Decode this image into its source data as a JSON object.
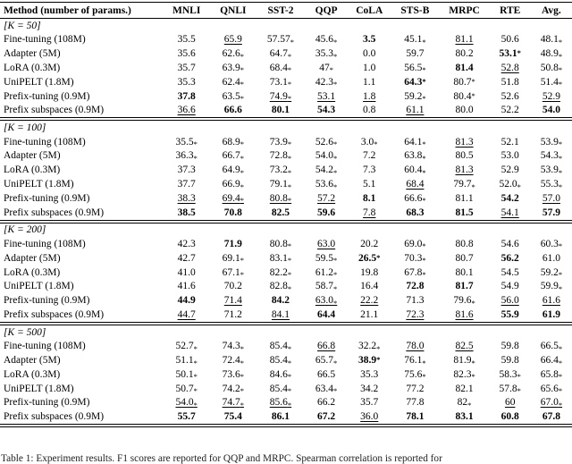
{
  "table": {
    "columns": [
      "Method (number of params.)",
      "MNLI",
      "QNLI",
      "SST-2",
      "QQP",
      "CoLA",
      "STS-B",
      "MRPC",
      "RTE",
      "Avg."
    ],
    "flag_codes": {
      "b": "bold",
      "u": "underline",
      "s": "subscript-star",
      "S": "superscript-star"
    },
    "sections": [
      {
        "label": "[K = 50]",
        "rows": [
          {
            "method": "Fine-tuning (108M)",
            "cells": [
              "35.5",
              "65.9|u",
              "57.57|s",
              "45.6|s",
              "3.5|b",
              "45.1|s",
              "81.1|u",
              "50.6",
              "48.1|s"
            ]
          },
          {
            "method": "Adapter (5M)",
            "cells": [
              "35.6",
              "62.6|s",
              "64.7|s",
              "35.3|s",
              "0.0",
              "59.7",
              "80.2",
              "53.1|bS",
              "48.9|s"
            ]
          },
          {
            "method": "LoRA (0.3M)",
            "cells": [
              "35.7",
              "63.9|s",
              "68.4|s",
              "47|s",
              "1.0",
              "56.5|s",
              "81.4|b",
              "52.8|u",
              "50.8|s"
            ]
          },
          {
            "method": "UniPELT (1.8M)",
            "cells": [
              "35.3",
              "62.4|s",
              "73.1|s",
              "42.3|s",
              "1.1",
              "64.3|bS",
              "80.7|S",
              "51.8",
              "51.4|s"
            ]
          },
          {
            "method": "Prefix-tuning (0.9M)",
            "cells": [
              "37.8|b",
              "63.5|s",
              "74.9|us",
              "53.1|u",
              "1.8|u",
              "59.2|s",
              "80.4|S",
              "52.6",
              "52.9|u"
            ]
          },
          {
            "method": "Prefix subspaces (0.9M)",
            "cells": [
              "36.6|u",
              "66.6|b",
              "80.1|b",
              "54.3|b",
              "0.8",
              "61.1|u",
              "80.0",
              "52.2",
              "54.0|b"
            ]
          }
        ]
      },
      {
        "label": "[K = 100]",
        "rows": [
          {
            "method": "Fine-tuning (108M)",
            "cells": [
              "35.5|s",
              "68.9|s",
              "73.9|s",
              "52.6|s",
              "3.0|s",
              "64.1|s",
              "81.3|u",
              "52.1",
              "53.9|s"
            ]
          },
          {
            "method": "Adapter (5M)",
            "cells": [
              "36.3|s",
              "66.7|s",
              "72.8|s",
              "54.0|s",
              "7.2",
              "63.8|s",
              "80.5",
              "53.0",
              "54.3|s"
            ]
          },
          {
            "method": "LoRA (0.3M)",
            "cells": [
              "37.3",
              "64.9|s",
              "73.2|s",
              "54.2|s",
              "7.3",
              "60.4|s",
              "81.3|u",
              "52.9",
              "53.9|s"
            ]
          },
          {
            "method": "UniPELT (1.8M)",
            "cells": [
              "37.7",
              "66.9|s",
              "79.1|s",
              "53.6|s",
              "5.1",
              "68.4|u",
              "79.7|s",
              "52.0|s",
              "55.3|s"
            ]
          },
          {
            "method": "Prefix-tuning (0.9M)",
            "cells": [
              "38.3|u",
              "69.4|us",
              "80.8|us",
              "57.2|u",
              "8.1|b",
              "66.6|s",
              "81.1",
              "54.2|b",
              "57.0|u"
            ]
          },
          {
            "method": "Prefix subspaces (0.9M)",
            "cells": [
              "38.5|b",
              "70.8|b",
              "82.5|b",
              "59.6|b",
              "7.8|u",
              "68.3|b",
              "81.5|b",
              "54.1|u",
              "57.9|b"
            ]
          }
        ]
      },
      {
        "label": "[K = 200]",
        "rows": [
          {
            "method": "Fine-tuning (108M)",
            "cells": [
              "42.3",
              "71.9|b",
              "80.8|s",
              "63.0|u",
              "20.2",
              "69.0|s",
              "80.8",
              "54.6",
              "60.3|s"
            ]
          },
          {
            "method": "Adapter (5M)",
            "cells": [
              "42.7",
              "69.1|s",
              "83.1|s",
              "59.5|s",
              "26.5|bS",
              "70.3|s",
              "80.7",
              "56.2|b",
              "61.0"
            ]
          },
          {
            "method": "LoRA (0.3M)",
            "cells": [
              "41.0",
              "67.1|s",
              "82.2|s",
              "61.2|s",
              "19.8",
              "67.8|s",
              "80.1",
              "54.5",
              "59.2|s"
            ]
          },
          {
            "method": "UniPELT (1.8M)",
            "cells": [
              "41.6",
              "70.2",
              "82.8|s",
              "58.7|s",
              "16.4",
              "72.8|b",
              "81.7|b",
              "54.9",
              "59.9|s"
            ]
          },
          {
            "method": "Prefix-tuning (0.9M)",
            "cells": [
              "44.9|b",
              "71.4|u",
              "84.2|b",
              "63.0|us",
              "22.2|u",
              "71.3",
              "79.6|s",
              "56.0|u",
              "61.6|u"
            ]
          },
          {
            "method": "Prefix subspaces (0.9M)",
            "cells": [
              "44.7|u",
              "71.2",
              "84.1|u",
              "64.4|b",
              "21.1",
              "72.3|u",
              "81.6|u",
              "55.9|b",
              "61.9|b"
            ]
          }
        ]
      },
      {
        "label": "[K = 500]",
        "rows": [
          {
            "method": "Fine-tuning (108M)",
            "cells": [
              "52.7|s",
              "74.3|s",
              "85.4|s",
              "66.8|u",
              "32.2|s",
              "78.0|u",
              "82.5|u",
              "59.8",
              "66.5|s"
            ]
          },
          {
            "method": "Adapter (5M)",
            "cells": [
              "51.1|s",
              "72.4|s",
              "85.4|s",
              "65.7|s",
              "38.9|bS",
              "76.1|s",
              "81.9|s",
              "59.8",
              "66.4|s"
            ]
          },
          {
            "method": "LoRA (0.3M)",
            "cells": [
              "50.1|s",
              "73.6|s",
              "84.6|s",
              "66.5",
              "35.3",
              "75.6|s",
              "82.3|s",
              "58.3|s",
              "65.8|s"
            ]
          },
          {
            "method": "UniPELT (1.8M)",
            "cells": [
              "50.7|s",
              "74.2|s",
              "85.4|s",
              "63.4|s",
              "34.2",
              "77.2",
              "82.1",
              "57.8|s",
              "65.6|s"
            ]
          },
          {
            "method": "Prefix-tuning (0.9M)",
            "cells": [
              "54.0|us",
              "74.7|us",
              "85.6|us",
              "66.2",
              "35.7",
              "77.8",
              "82|s",
              "60|u",
              "67.0|us"
            ]
          },
          {
            "method": "Prefix subspaces (0.9M)",
            "cells": [
              "55.7|b",
              "75.4|b",
              "86.1|b",
              "67.2|b",
              "36.0|u",
              "78.1|b",
              "83.1|b",
              "60.8|b",
              "67.8|b"
            ]
          }
        ]
      }
    ],
    "caption": "Table 1: Experiment results. F1 scores are reported for QQP and MRPC. Spearman correlation is reported for"
  }
}
